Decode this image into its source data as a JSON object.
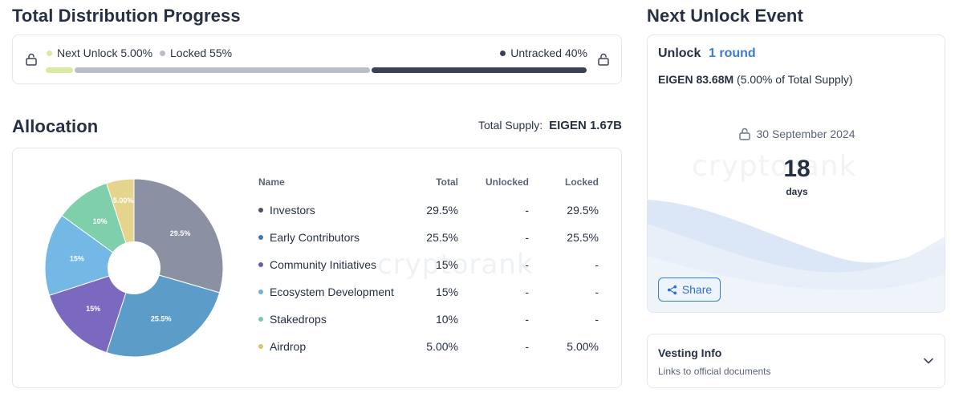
{
  "progress": {
    "title": "Total Distribution Progress",
    "next_unlock_label": "Next Unlock 5.00%",
    "locked_label": "Locked 55%",
    "untracked_label": "Untracked 40%",
    "next_unlock_pct": 5,
    "locked_pct": 55,
    "untracked_pct": 40,
    "colors": {
      "next_unlock": "#dbeaa3",
      "locked": "#b9bec8",
      "untracked": "#3c4256"
    }
  },
  "allocation": {
    "title": "Allocation",
    "total_supply_label": "Total Supply:",
    "total_supply_value": "EIGEN 1.67B",
    "watermark": "cryptorank",
    "columns": {
      "name": "Name",
      "total": "Total",
      "unlocked": "Unlocked",
      "locked": "Locked"
    },
    "rows": [
      {
        "name": "Investors",
        "total": "29.5%",
        "unlocked": "-",
        "locked": "29.5%"
      },
      {
        "name": "Early Contributors",
        "total": "25.5%",
        "unlocked": "-",
        "locked": "25.5%"
      },
      {
        "name": "Community Initiatives",
        "total": "15%",
        "unlocked": "-",
        "locked": "-"
      },
      {
        "name": "Ecosystem Development",
        "total": "15%",
        "unlocked": "-",
        "locked": "-"
      },
      {
        "name": "Stakedrops",
        "total": "10%",
        "unlocked": "-",
        "locked": "-"
      },
      {
        "name": "Airdrop",
        "total": "5.00%",
        "unlocked": "-",
        "locked": "5.00%"
      }
    ]
  },
  "chart_data": {
    "type": "pie",
    "title": "Allocation",
    "categories": [
      "Investors",
      "Early Contributors",
      "Community Initiatives",
      "Ecosystem Development",
      "Stakedrops",
      "Airdrop"
    ],
    "values": [
      29.5,
      25.5,
      15,
      15,
      10,
      5
    ],
    "labels": [
      "29.5%",
      "25.5%",
      "15%",
      "15%",
      "10%",
      "5.00%"
    ],
    "colors": [
      "#8b90a2",
      "#5b9cc8",
      "#7b69bf",
      "#74b8e6",
      "#7fcfaa",
      "#e5d48c"
    ],
    "donut_hole": true
  },
  "next_unlock": {
    "title": "Next Unlock Event",
    "unlock_label": "Unlock",
    "round_link": "1 round",
    "amount_bold": "EIGEN 83.68M",
    "amount_rest": "(5.00% of Total Supply)",
    "date": "30 September 2024",
    "days_value": "18",
    "days_label": "days",
    "watermark": "cryptorank",
    "share_label": "Share"
  },
  "vesting": {
    "title": "Vesting Info",
    "subtitle": "Links to official documents"
  }
}
